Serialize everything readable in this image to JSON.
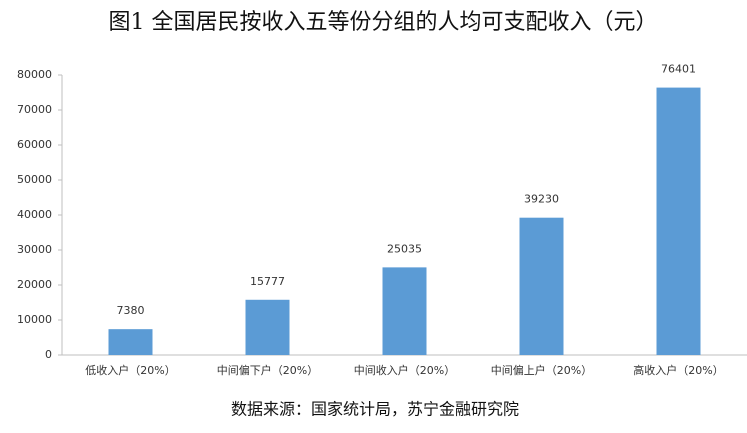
{
  "chart_data": {
    "type": "bar",
    "title": "图1 全国居民按收入五等份分组的人均可支配收入（元）",
    "source": "数据来源：国家统计局，苏宁金融研究院",
    "categories": [
      "低收入户（20%）",
      "中间偏下户（20%）",
      "中间收入户（20%）",
      "中间偏上户（20%）",
      "高收入户（20%）"
    ],
    "values": [
      7380,
      15777,
      25035,
      39230,
      76401
    ],
    "color": "#5b9bd5",
    "ylim": [
      0,
      80000
    ],
    "yticks": [
      0,
      10000,
      20000,
      30000,
      40000,
      50000,
      60000,
      70000,
      80000
    ],
    "grid": false
  }
}
